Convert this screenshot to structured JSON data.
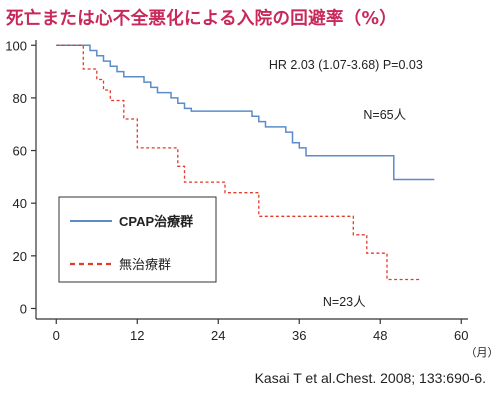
{
  "title": "死亡または心不全悪化による入院の回避率（%）",
  "colors": {
    "title": "#c8285a",
    "cpap": "#5b8cc8",
    "untreated": "#e23a2c",
    "axis": "#333333"
  },
  "citation": "Kasai T et al.Chest. 2008; 133:690-6.",
  "chart_data": {
    "type": "line",
    "subtype": "step",
    "title": "死亡または心不全悪化による入院の回避率（%）",
    "xlabel": "（月）",
    "ylabel": "",
    "xlim": [
      -3,
      61
    ],
    "ylim": [
      -4,
      102
    ],
    "xticks": [
      0,
      12,
      24,
      36,
      48,
      60
    ],
    "yticks": [
      0,
      20,
      40,
      60,
      80,
      100
    ],
    "grid": false,
    "legend_position": "lower-left",
    "annotations": [
      {
        "text": "HR 2.03 (1.07-3.68) P=0.03",
        "x": 31.5,
        "y": 91
      },
      {
        "text": "N=65人",
        "x": 45.5,
        "y": 72
      },
      {
        "text": "N=23人",
        "x": 39.5,
        "y": 1
      }
    ],
    "series": [
      {
        "name": "CPAP治療群",
        "style": "solid",
        "x": [
          0,
          4,
          5,
          6,
          7,
          8,
          9,
          10,
          12,
          13,
          14,
          15,
          17,
          18,
          19,
          20,
          28,
          29,
          30,
          31,
          34,
          35,
          36,
          37,
          50,
          56
        ],
        "y": [
          100,
          100,
          98,
          96,
          94,
          92,
          90,
          88,
          88,
          86,
          84,
          82,
          80,
          78,
          76,
          75,
          75,
          73,
          71,
          69,
          67,
          63,
          61,
          58,
          49,
          49
        ]
      },
      {
        "name": "無治療群",
        "style": "dashed",
        "x": [
          0,
          3,
          4,
          6,
          7,
          8,
          10,
          12,
          18,
          19,
          20,
          25,
          30,
          44,
          46,
          49,
          54
        ],
        "y": [
          100,
          100,
          91,
          87,
          83,
          79,
          72,
          61,
          54,
          48,
          48,
          44,
          35,
          28,
          21,
          11,
          11
        ]
      }
    ]
  }
}
